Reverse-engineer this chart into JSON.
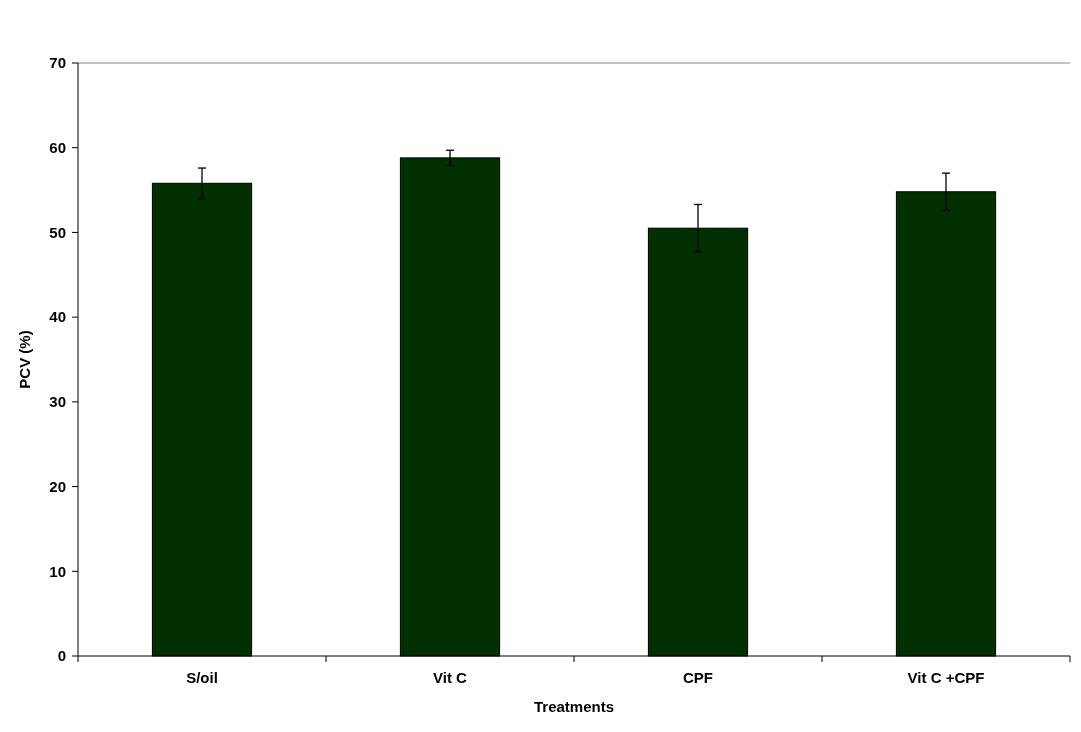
{
  "chart_data": {
    "type": "bar",
    "xlabel": "Treatments",
    "ylabel": "PCV (%)",
    "categories": [
      "S/oil",
      "Vit C",
      "CPF",
      "Vit C +CPF"
    ],
    "values": [
      55.8,
      58.8,
      50.5,
      54.8
    ],
    "errors": [
      1.8,
      0.9,
      2.8,
      2.2
    ],
    "color": "#033003",
    "ylim": [
      0,
      70
    ],
    "yticks": [
      0,
      10,
      20,
      30,
      40,
      50,
      60,
      70
    ],
    "grid": false
  }
}
